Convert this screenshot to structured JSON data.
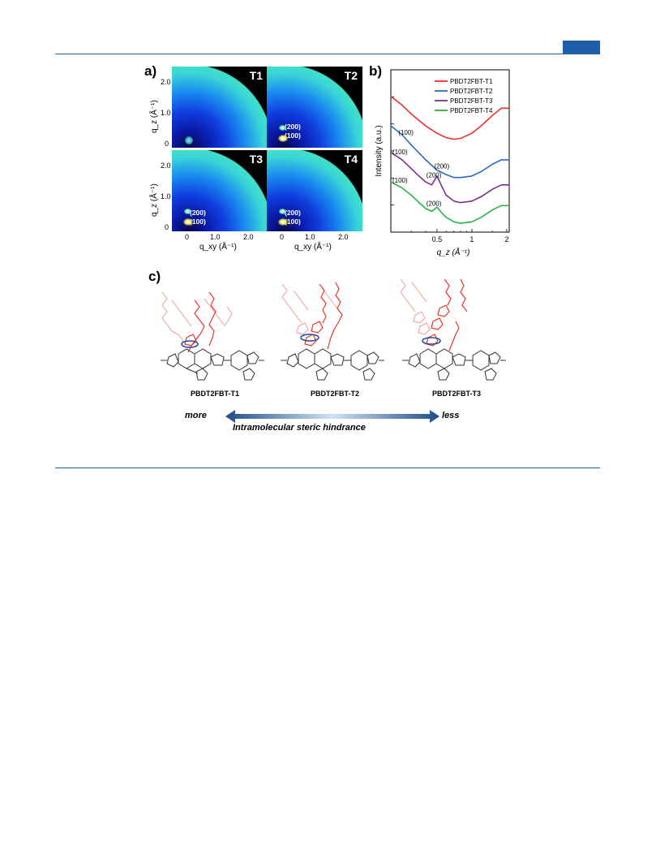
{
  "panel_a": {
    "label": "a)",
    "panels": [
      {
        "tag": "T1",
        "peaks": []
      },
      {
        "tag": "T2",
        "peaks": [
          "(200)",
          "(100)"
        ]
      },
      {
        "tag": "T3",
        "peaks": [
          "(200)",
          "(100)"
        ]
      },
      {
        "tag": "T4",
        "peaks": [
          "(200)",
          "(100)"
        ]
      }
    ],
    "y_ticks": [
      "2.0",
      "1.0",
      "0"
    ],
    "x_ticks": [
      "0",
      "1.0",
      "2.0"
    ],
    "ylabel": "q_z (Å⁻¹)",
    "xlabel": "q_xy (Å⁻¹)"
  },
  "panel_c": {
    "label": "c)",
    "molecules": [
      "PBDT2FBT-T1",
      "PBDT2FBT-T2",
      "PBDT2FBT-T3"
    ],
    "arrow": {
      "left": "more",
      "right": "less",
      "caption": "Intramolecular steric hindrance"
    }
  },
  "chart_data": {
    "type": "line",
    "label": "b)",
    "title": "",
    "xlabel": "q_z (Å⁻¹)",
    "ylabel": "Intensity (a.u.)",
    "x_scale": "log",
    "x_ticks": [
      "0.5",
      "1",
      "2"
    ],
    "xlim": [
      0.2,
      2.1
    ],
    "grid": false,
    "legend_position": "top-right",
    "series": [
      {
        "name": "PBDT2FBT-T1",
        "color": "#e8342b",
        "x": [
          0.2,
          0.25,
          0.3,
          0.4,
          0.5,
          0.6,
          0.7,
          0.8,
          1.0,
          1.2,
          1.5,
          1.8,
          2.1
        ],
        "y": [
          8.6,
          8.0,
          7.4,
          6.6,
          6.1,
          5.8,
          5.7,
          5.75,
          6.1,
          6.6,
          7.3,
          7.8,
          7.8
        ],
        "annotations": []
      },
      {
        "name": "PBDT2FBT-T2",
        "color": "#2a6ac9",
        "x": [
          0.2,
          0.25,
          0.3,
          0.4,
          0.5,
          0.6,
          0.7,
          0.8,
          1.0,
          1.2,
          1.5,
          1.8,
          2.1
        ],
        "y": [
          6.6,
          6.0,
          5.3,
          4.3,
          3.6,
          3.3,
          3.1,
          3.1,
          3.2,
          3.5,
          4.0,
          4.3,
          4.3
        ],
        "annotations": [
          {
            "text": "(100)",
            "x": 0.27
          },
          {
            "text": "(200)",
            "x": 0.55
          }
        ]
      },
      {
        "name": "PBDT2FBT-T3",
        "color": "#7b2e93",
        "x": [
          0.2,
          0.25,
          0.3,
          0.35,
          0.4,
          0.45,
          0.5,
          0.55,
          0.6,
          0.7,
          0.8,
          1.0,
          1.2,
          1.5,
          1.8,
          2.1
        ],
        "y": [
          4.8,
          4.3,
          3.7,
          3.2,
          2.8,
          2.6,
          3.2,
          2.5,
          1.9,
          1.5,
          1.4,
          1.5,
          1.8,
          2.3,
          2.6,
          2.6
        ],
        "annotations": [
          {
            "text": "(100)",
            "x": 0.24
          },
          {
            "text": "(200)",
            "x": 0.47
          }
        ]
      },
      {
        "name": "PBDT2FBT-T4",
        "color": "#2bb34a",
        "x": [
          0.2,
          0.25,
          0.3,
          0.35,
          0.4,
          0.45,
          0.5,
          0.55,
          0.6,
          0.7,
          0.8,
          1.0,
          1.2,
          1.5,
          1.8,
          2.1
        ],
        "y": [
          2.8,
          2.4,
          1.9,
          1.4,
          1.0,
          0.8,
          1.1,
          0.7,
          0.4,
          0.1,
          0.0,
          0.1,
          0.4,
          0.9,
          1.2,
          1.2
        ],
        "annotations": [
          {
            "text": "(100)",
            "x": 0.24
          },
          {
            "text": "(200)",
            "x": 0.47
          }
        ]
      }
    ]
  }
}
